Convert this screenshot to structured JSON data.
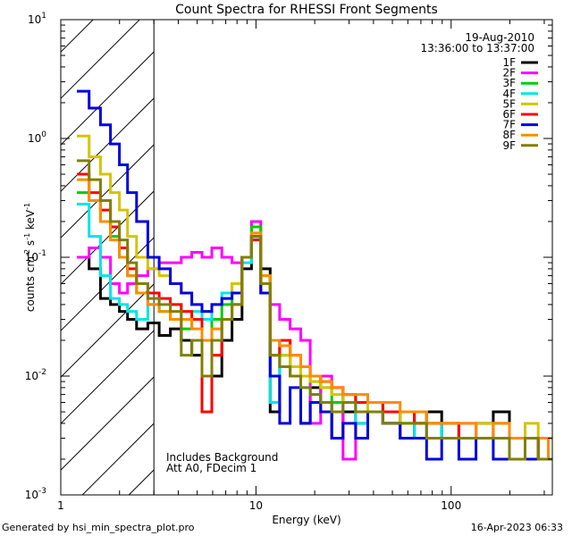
{
  "chart_data": {
    "type": "line",
    "title": "Count Spectra for RHESSI Front Segments",
    "xlabel": "Energy (keV)",
    "ylabel_parts": {
      "a": "counts cm",
      "b": "-2",
      "c": " s",
      "d": "-1",
      "e": " keV",
      "f": "-1"
    },
    "xscale": "log",
    "yscale": "log",
    "xlim": [
      1,
      330
    ],
    "ylim": [
      0.001,
      10
    ],
    "x_ticks": [
      {
        "value": 1,
        "label": "1"
      },
      {
        "value": 10,
        "label": "10"
      },
      {
        "value": 100,
        "label": "100"
      }
    ],
    "y_ticks": [
      {
        "value": 0.001,
        "base": "10",
        "exp": "-3"
      },
      {
        "value": 0.01,
        "base": "10",
        "exp": "-2"
      },
      {
        "value": 0.1,
        "base": "10",
        "exp": "-1"
      },
      {
        "value": 1,
        "base": "10",
        "exp": "0"
      },
      {
        "value": 10,
        "base": "10",
        "exp": "1"
      }
    ],
    "legend": {
      "position": "top-right",
      "date": "19-Aug-2010",
      "time_range": "13:36:00 to 13:37:00"
    },
    "excluded_region": {
      "x_from": 1,
      "x_to": 3,
      "style": "diagonal hatching"
    },
    "annotation_lines": [
      "Includes Background",
      "Att A0, FDecim 1"
    ],
    "series": [
      {
        "name": "1F",
        "color": "#000000",
        "x": [
          1.3,
          1.5,
          1.7,
          1.9,
          2.1,
          2.3,
          2.6,
          3.0,
          3.4,
          3.9,
          4.4,
          5.0,
          5.6,
          6.3,
          7.1,
          8.0,
          9.0,
          10.0,
          11.2,
          12.5,
          14,
          16,
          18,
          20,
          23,
          26,
          30,
          35,
          40,
          50,
          60,
          70,
          80,
          100,
          120,
          150,
          180,
          220,
          260,
          300,
          330
        ],
        "y": [
          0.1,
          0.08,
          0.045,
          0.04,
          0.035,
          0.03,
          0.025,
          0.028,
          0.022,
          0.025,
          0.02,
          0.015,
          0.005,
          0.01,
          0.02,
          0.03,
          0.08,
          0.15,
          0.08,
          0.005,
          0.02,
          0.01,
          0.004,
          0.008,
          0.006,
          0.003,
          0.005,
          0.004,
          0.006,
          0.004,
          0.003,
          0.004,
          0.005,
          0.003,
          0.003,
          0.004,
          0.005,
          0.003,
          0.002,
          0.003,
          0.003
        ]
      },
      {
        "name": "2F",
        "color": "#ff00ff",
        "x": [
          1.3,
          1.5,
          1.7,
          1.9,
          2.1,
          2.3,
          2.6,
          3.0,
          3.4,
          3.9,
          4.4,
          5.0,
          5.6,
          6.3,
          7.1,
          8.0,
          9.0,
          10.0,
          11.2,
          12.5,
          14,
          16,
          18,
          20,
          23,
          26,
          30,
          35,
          40,
          50,
          60,
          70,
          80,
          100,
          120,
          150,
          180,
          220,
          260,
          300,
          330
        ],
        "y": [
          0.1,
          0.12,
          0.1,
          0.06,
          0.05,
          0.06,
          0.07,
          0.08,
          0.09,
          0.09,
          0.1,
          0.11,
          0.1,
          0.12,
          0.1,
          0.09,
          0.1,
          0.2,
          0.05,
          0.04,
          0.03,
          0.025,
          0.02,
          0.004,
          0.01,
          0.008,
          0.002,
          0.006,
          0.005,
          0.004,
          0.005,
          0.004,
          0.003,
          0.003,
          0.004,
          0.003,
          0.004,
          0.003,
          0.003,
          0.002,
          0.002
        ]
      },
      {
        "name": "3F",
        "color": "#00cc00",
        "x": [
          1.3,
          1.5,
          1.7,
          1.9,
          2.1,
          2.3,
          2.6,
          3.0,
          3.4,
          3.9,
          4.4,
          5.0,
          5.6,
          6.3,
          7.1,
          8.0,
          9.0,
          10.0,
          11.2,
          12.5,
          14,
          16,
          18,
          20,
          23,
          26,
          30,
          35,
          40,
          50,
          60,
          70,
          80,
          100,
          120,
          150,
          180,
          220,
          260,
          300,
          330
        ],
        "y": [
          0.35,
          0.3,
          0.2,
          0.15,
          0.1,
          0.07,
          0.05,
          0.04,
          0.035,
          0.03,
          0.025,
          0.03,
          0.02,
          0.03,
          0.04,
          0.05,
          0.1,
          0.18,
          0.07,
          0.02,
          0.015,
          0.012,
          0.01,
          0.009,
          0.008,
          0.006,
          0.007,
          0.005,
          0.006,
          0.005,
          0.004,
          0.005,
          0.004,
          0.004,
          0.003,
          0.003,
          0.004,
          0.003,
          0.003,
          0.002,
          0.002
        ]
      },
      {
        "name": "4F",
        "color": "#00e5e5",
        "x": [
          1.3,
          1.5,
          1.7,
          1.9,
          2.1,
          2.3,
          2.6,
          3.0,
          3.4,
          3.9,
          4.4,
          5.0,
          5.6,
          6.3,
          7.1,
          8.0,
          9.0,
          10.0,
          11.2,
          12.5,
          14,
          16,
          18,
          20,
          23,
          26,
          30,
          35,
          40,
          50,
          60,
          70,
          80,
          100,
          120,
          150,
          180,
          220,
          260,
          300,
          330
        ],
        "y": [
          0.28,
          0.15,
          0.07,
          0.045,
          0.04,
          0.035,
          0.03,
          0.04,
          0.035,
          0.04,
          0.03,
          0.035,
          0.03,
          0.04,
          0.05,
          0.06,
          0.09,
          0.16,
          0.06,
          0.006,
          0.015,
          0.01,
          0.008,
          0.007,
          0.006,
          0.005,
          0.006,
          0.004,
          0.005,
          0.004,
          0.004,
          0.003,
          0.004,
          0.003,
          0.003,
          0.003,
          0.003,
          0.002,
          0.002,
          0.002,
          0.002
        ]
      },
      {
        "name": "5F",
        "color": "#d4c400",
        "x": [
          1.3,
          1.5,
          1.7,
          1.9,
          2.1,
          2.3,
          2.6,
          3.0,
          3.4,
          3.9,
          4.4,
          5.0,
          5.6,
          6.3,
          7.1,
          8.0,
          9.0,
          10.0,
          11.2,
          12.5,
          14,
          16,
          18,
          20,
          23,
          26,
          30,
          35,
          40,
          50,
          60,
          70,
          80,
          100,
          120,
          150,
          180,
          220,
          260,
          300,
          330
        ],
        "y": [
          1.05,
          0.7,
          0.5,
          0.35,
          0.25,
          0.15,
          0.1,
          0.08,
          0.07,
          0.06,
          0.05,
          0.04,
          0.035,
          0.04,
          0.045,
          0.06,
          0.1,
          0.16,
          0.06,
          0.02,
          0.015,
          0.012,
          0.01,
          0.009,
          0.008,
          0.007,
          0.006,
          0.006,
          0.005,
          0.005,
          0.004,
          0.004,
          0.004,
          0.004,
          0.003,
          0.004,
          0.003,
          0.003,
          0.004,
          0.003,
          0.003
        ]
      },
      {
        "name": "6F",
        "color": "#ff0000",
        "x": [
          1.3,
          1.5,
          1.7,
          1.9,
          2.1,
          2.3,
          2.6,
          3.0,
          3.4,
          3.9,
          4.4,
          5.0,
          5.6,
          6.3,
          7.1,
          8.0,
          9.0,
          10.0,
          11.2,
          12.5,
          14,
          16,
          18,
          20,
          23,
          26,
          30,
          35,
          40,
          50,
          60,
          70,
          80,
          100,
          120,
          150,
          180,
          220,
          260,
          300,
          330
        ],
        "y": [
          0.5,
          0.35,
          0.25,
          0.18,
          0.12,
          0.08,
          0.06,
          0.05,
          0.045,
          0.04,
          0.035,
          0.03,
          0.005,
          0.015,
          0.03,
          0.04,
          0.1,
          0.14,
          0.05,
          0.015,
          0.02,
          0.015,
          0.012,
          0.01,
          0.009,
          0.008,
          0.007,
          0.006,
          0.006,
          0.005,
          0.005,
          0.004,
          0.004,
          0.004,
          0.003,
          0.003,
          0.003,
          0.003,
          0.003,
          0.002,
          0.002
        ]
      },
      {
        "name": "7F",
        "color": "#0000dd",
        "x": [
          1.3,
          1.5,
          1.7,
          1.9,
          2.1,
          2.3,
          2.6,
          3.0,
          3.4,
          3.9,
          4.4,
          5.0,
          5.6,
          6.3,
          7.1,
          8.0,
          9.0,
          10.0,
          11.2,
          12.5,
          14,
          16,
          18,
          20,
          23,
          26,
          30,
          35,
          40,
          50,
          60,
          70,
          80,
          100,
          120,
          150,
          180,
          220,
          260,
          300,
          330
        ],
        "y": [
          2.5,
          1.8,
          1.3,
          0.9,
          0.6,
          0.35,
          0.2,
          0.1,
          0.08,
          0.06,
          0.05,
          0.04,
          0.035,
          0.04,
          0.045,
          0.05,
          0.1,
          0.15,
          0.05,
          0.01,
          0.004,
          0.008,
          0.004,
          0.006,
          0.005,
          0.003,
          0.004,
          0.003,
          0.005,
          0.004,
          0.003,
          0.003,
          0.002,
          0.003,
          0.002,
          0.003,
          0.002,
          0.003,
          0.002,
          0.002,
          0.002
        ]
      },
      {
        "name": "8F",
        "color": "#ff8c00",
        "x": [
          1.3,
          1.5,
          1.7,
          1.9,
          2.1,
          2.3,
          2.6,
          3.0,
          3.4,
          3.9,
          4.4,
          5.0,
          5.6,
          6.3,
          7.1,
          8.0,
          9.0,
          10.0,
          11.2,
          12.5,
          14,
          16,
          18,
          20,
          23,
          26,
          30,
          35,
          40,
          50,
          60,
          70,
          80,
          100,
          120,
          150,
          180,
          220,
          260,
          300,
          330
        ],
        "y": [
          0.45,
          0.3,
          0.2,
          0.14,
          0.1,
          0.07,
          0.05,
          0.04,
          0.035,
          0.03,
          0.03,
          0.025,
          0.02,
          0.025,
          0.03,
          0.04,
          0.1,
          0.16,
          0.07,
          0.02,
          0.018,
          0.015,
          0.012,
          0.01,
          0.009,
          0.008,
          0.007,
          0.007,
          0.006,
          0.006,
          0.005,
          0.005,
          0.004,
          0.004,
          0.004,
          0.003,
          0.004,
          0.003,
          0.003,
          0.003,
          0.002
        ]
      },
      {
        "name": "9F",
        "color": "#808000",
        "x": [
          1.3,
          1.5,
          1.7,
          1.9,
          2.1,
          2.3,
          2.6,
          3.0,
          3.4,
          3.9,
          4.4,
          5.0,
          5.6,
          6.3,
          7.1,
          8.0,
          9.0,
          10.0,
          11.2,
          12.5,
          14,
          16,
          18,
          20,
          23,
          26,
          30,
          35,
          40,
          50,
          60,
          70,
          80,
          100,
          120,
          150,
          180,
          220,
          260,
          300,
          330
        ],
        "y": [
          0.65,
          0.45,
          0.3,
          0.2,
          0.14,
          0.09,
          0.06,
          0.045,
          0.04,
          0.035,
          0.015,
          0.02,
          0.01,
          0.02,
          0.03,
          0.04,
          0.1,
          0.15,
          0.06,
          0.015,
          0.012,
          0.01,
          0.008,
          0.007,
          0.006,
          0.005,
          0.006,
          0.005,
          0.005,
          0.004,
          0.004,
          0.004,
          0.003,
          0.003,
          0.003,
          0.003,
          0.003,
          0.002,
          0.003,
          0.002,
          0.002
        ]
      }
    ]
  },
  "footer": {
    "left": "Generated by hsi_min_spectra_plot.pro",
    "right": "16-Apr-2023 06:33"
  }
}
